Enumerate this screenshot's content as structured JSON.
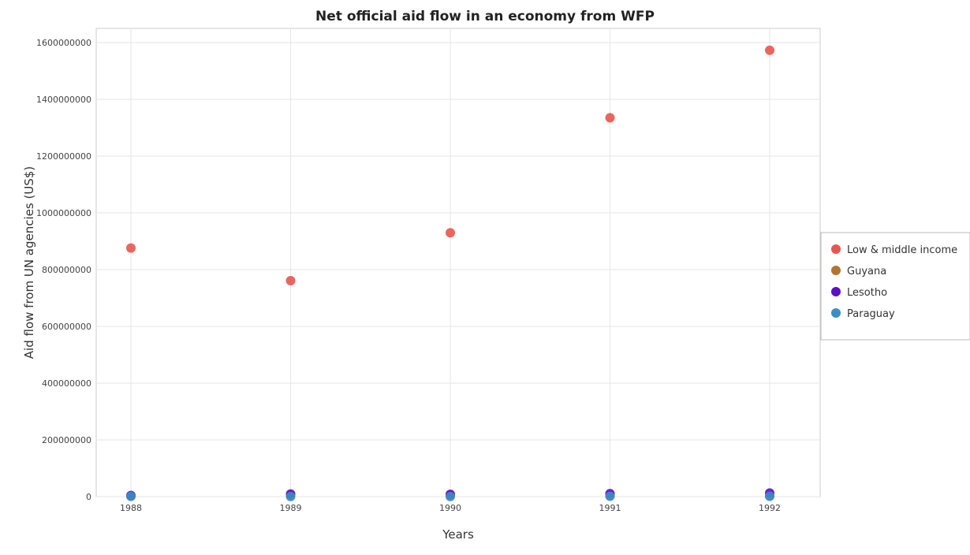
{
  "chart_data": {
    "type": "scatter",
    "title": "Net official aid flow in an economy from WFP",
    "xlabel": "Years",
    "ylabel": "Aid flow from UN agencies (US$)",
    "categories": [
      "1988",
      "1989",
      "1990",
      "1991",
      "1992"
    ],
    "y_ticks": [
      "0",
      "200000000",
      "400000000",
      "600000000",
      "800000000",
      "1000000000",
      "1200000000",
      "1400000000",
      "1600000000"
    ],
    "ylim": [
      0,
      1650000000
    ],
    "grid": true,
    "legend_position": "right",
    "series": [
      {
        "name": "Low & middle income",
        "color": "#e8554e",
        "values": [
          876000000,
          761000000,
          930000000,
          1335000000,
          1573000000
        ]
      },
      {
        "name": "Guyana",
        "color": "#b3742e",
        "values": [
          2600000,
          4200000,
          5000000,
          3700000,
          2200000
        ]
      },
      {
        "name": "Lesotho",
        "color": "#5b10c8",
        "values": [
          4200000,
          9500000,
          8200000,
          10800000,
          12700000
        ]
      },
      {
        "name": "Paraguay",
        "color": "#3c8ec4",
        "values": [
          1000000,
          500000,
          400000,
          1500000,
          1300000
        ]
      }
    ]
  }
}
